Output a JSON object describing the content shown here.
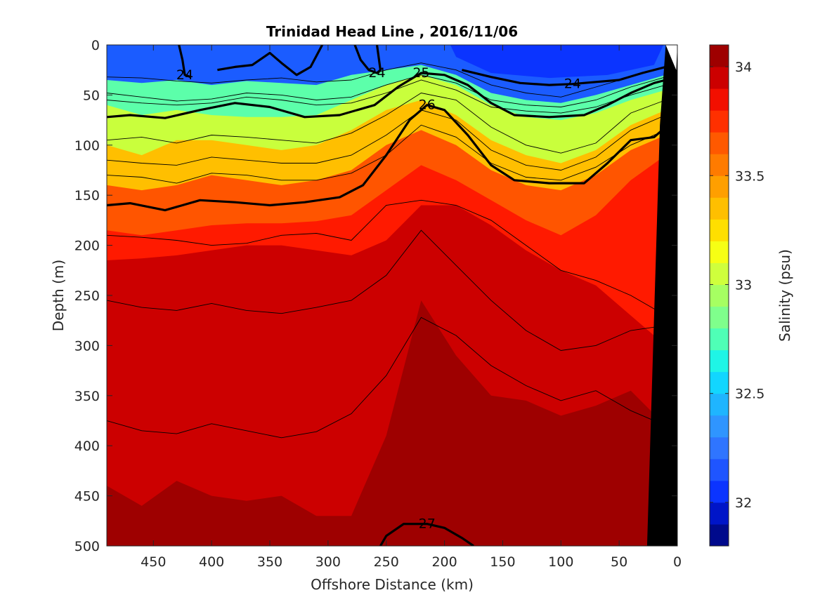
{
  "chart_data": {
    "type": "heatmap",
    "subtype": "filled-contour section with density contour overlay",
    "title": "Trinidad Head Line , 2016/11/06",
    "xlabel": "Offshore Distance (km)",
    "ylabel": "Depth (m)",
    "colorbar_label": "Salinity (psu)",
    "xlim": [
      490,
      0
    ],
    "ylim": [
      0,
      500
    ],
    "x_reversed": true,
    "y_reversed": true,
    "x_ticks": [
      450,
      400,
      350,
      300,
      250,
      200,
      150,
      100,
      50,
      0
    ],
    "y_ticks": [
      0,
      50,
      100,
      150,
      200,
      250,
      300,
      350,
      400,
      450,
      500
    ],
    "colorbar": {
      "clim": [
        31.8,
        34.1
      ],
      "ticks": [
        32,
        32.5,
        33,
        33.5,
        34
      ],
      "levels": [
        31.8,
        31.9,
        32.0,
        32.1,
        32.2,
        32.3,
        32.4,
        32.5,
        32.6,
        32.7,
        32.8,
        32.9,
        33.0,
        33.1,
        33.2,
        33.3,
        33.4,
        33.5,
        33.6,
        33.7,
        33.8,
        33.9,
        34.0,
        34.1
      ],
      "colors": [
        "#000a8c",
        "#0015c8",
        "#0b34ff",
        "#1f55ff",
        "#2f75ff",
        "#2f95ff",
        "#1fb5ff",
        "#12d6ff",
        "#1ff5e6",
        "#4fffb6",
        "#7fff8c",
        "#a6ff62",
        "#cfff3c",
        "#f6ff14",
        "#ffdf00",
        "#ffbf00",
        "#ff9f00",
        "#ff7b00",
        "#ff5900",
        "#ff3000",
        "#f20f00",
        "#cc0000",
        "#9e0000"
      ]
    },
    "salinity_bands": [
      {
        "x": [
          490,
          460,
          430,
          400,
          370,
          340,
          310,
          280,
          250,
          220,
          190,
          160,
          130,
          100,
          70,
          40,
          10
        ],
        "y": [
          0,
          0,
          0,
          0,
          0,
          0,
          0,
          0,
          0,
          0,
          0,
          0,
          0,
          0,
          0,
          0,
          0
        ]
      },
      {
        "x": [
          490,
          460,
          430,
          400,
          370,
          340,
          310,
          280,
          250,
          220,
          190,
          160,
          130,
          100,
          70,
          40,
          10
        ],
        "y": [
          35,
          38,
          35,
          40,
          36,
          38,
          40,
          30,
          25,
          20,
          30,
          48,
          55,
          58,
          50,
          40,
          30
        ]
      },
      {
        "x": [
          490,
          460,
          430,
          400,
          370,
          340,
          310,
          280,
          250,
          220,
          190,
          160,
          130,
          100,
          70,
          40,
          10
        ],
        "y": [
          60,
          70,
          65,
          70,
          72,
          72,
          70,
          55,
          40,
          30,
          40,
          60,
          72,
          75,
          68,
          55,
          45
        ]
      },
      {
        "x": [
          490,
          460,
          430,
          400,
          370,
          340,
          310,
          280,
          250,
          220,
          190,
          160,
          130,
          100,
          70,
          40,
          10
        ],
        "y": [
          100,
          110,
          95,
          95,
          100,
          105,
          100,
          85,
          65,
          55,
          70,
          95,
          110,
          118,
          105,
          80,
          65
        ]
      },
      {
        "x": [
          490,
          460,
          430,
          400,
          370,
          340,
          310,
          280,
          250,
          220,
          190,
          160,
          130,
          100,
          70,
          40,
          10
        ],
        "y": [
          140,
          145,
          140,
          130,
          135,
          140,
          135,
          125,
          100,
          85,
          100,
          125,
          140,
          145,
          130,
          105,
          90
        ]
      },
      {
        "x": [
          490,
          460,
          430,
          400,
          370,
          340,
          310,
          280,
          250,
          220,
          190,
          160,
          130,
          100,
          70,
          40,
          10
        ],
        "y": [
          185,
          190,
          185,
          180,
          178,
          178,
          176,
          170,
          145,
          120,
          135,
          155,
          175,
          190,
          170,
          135,
          110
        ]
      },
      {
        "x": [
          490,
          460,
          430,
          400,
          370,
          340,
          310,
          280,
          250,
          220,
          190,
          160,
          130,
          100,
          70,
          40,
          10
        ],
        "y": [
          215,
          213,
          210,
          205,
          200,
          200,
          205,
          210,
          195,
          160,
          160,
          180,
          205,
          225,
          240,
          270,
          300
        ]
      },
      {
        "x": [
          490,
          460,
          430,
          400,
          370,
          340,
          310,
          280,
          250,
          220,
          190,
          160,
          130,
          100,
          70,
          40,
          10
        ],
        "y": [
          440,
          460,
          435,
          450,
          455,
          450,
          470,
          470,
          390,
          255,
          310,
          350,
          355,
          370,
          360,
          345,
          380
        ]
      }
    ],
    "density_contours": [
      {
        "value": 24,
        "labeled": true,
        "x": [
          428,
          425,
          423,
          418
        ],
        "y": [
          0,
          15,
          30,
          32
        ]
      },
      {
        "value": 24,
        "labeled": false,
        "x": [
          395,
          380,
          365,
          350,
          340,
          327,
          315,
          305
        ],
        "y": [
          25,
          22,
          20,
          8,
          18,
          30,
          22,
          0
        ]
      },
      {
        "value": 24,
        "labeled": true,
        "x": [
          277,
          272,
          265,
          258,
          255,
          258
        ],
        "y": [
          0,
          15,
          25,
          28,
          25,
          0
        ]
      },
      {
        "value": 24,
        "labeled": true,
        "x": [
          185,
          160,
          135,
          110,
          90,
          70,
          50,
          30,
          10
        ],
        "y": [
          25,
          32,
          38,
          40,
          39,
          37,
          35,
          28,
          22
        ]
      },
      {
        "value": 25,
        "labeled": true,
        "x": [
          490,
          470,
          440,
          410,
          380,
          350,
          320,
          290,
          260,
          240,
          220,
          200,
          180,
          160,
          140,
          110,
          80,
          60,
          40,
          20,
          10
        ],
        "y": [
          72,
          70,
          73,
          65,
          58,
          62,
          72,
          70,
          60,
          42,
          28,
          30,
          40,
          58,
          70,
          72,
          70,
          60,
          48,
          38,
          35
        ]
      },
      {
        "value": 26,
        "labeled": true,
        "x": [
          490,
          470,
          440,
          410,
          380,
          350,
          320,
          290,
          270,
          250,
          230,
          215,
          200,
          180,
          160,
          140,
          110,
          80,
          60,
          40,
          20,
          10
        ],
        "y": [
          160,
          158,
          165,
          155,
          157,
          160,
          157,
          152,
          140,
          110,
          75,
          60,
          65,
          90,
          120,
          135,
          138,
          138,
          118,
          95,
          92,
          82
        ]
      },
      {
        "value": 27,
        "labeled": true,
        "x": [
          255,
          250,
          235,
          215,
          200,
          185,
          175
        ],
        "y": [
          500,
          490,
          478,
          478,
          482,
          492,
          500
        ]
      }
    ],
    "thin_contours": [
      {
        "x": [
          490,
          460,
          430,
          400,
          370,
          340,
          310,
          280,
          250,
          220,
          190,
          160,
          130,
          100,
          70,
          40,
          10
        ],
        "y": [
          32,
          33,
          36,
          38,
          35,
          33,
          37,
          35,
          25,
          18,
          25,
          40,
          48,
          52,
          42,
          32,
          22
        ]
      },
      {
        "x": [
          490,
          460,
          430,
          400,
          370,
          340,
          310,
          280,
          250,
          220,
          190,
          160,
          130,
          100,
          70,
          40,
          10
        ],
        "y": [
          48,
          52,
          56,
          54,
          48,
          50,
          55,
          52,
          40,
          30,
          38,
          55,
          60,
          62,
          55,
          42,
          32
        ]
      },
      {
        "x": [
          490,
          460,
          430,
          400,
          370,
          340,
          310,
          280,
          250,
          220,
          190,
          160,
          130,
          100,
          70,
          40,
          10
        ],
        "y": [
          55,
          58,
          60,
          58,
          52,
          55,
          60,
          58,
          48,
          35,
          45,
          62,
          66,
          68,
          62,
          50,
          40
        ]
      },
      {
        "x": [
          490,
          460,
          430,
          400,
          370,
          340,
          310,
          280,
          250,
          220,
          190,
          160,
          130,
          100,
          70,
          40,
          10
        ],
        "y": [
          95,
          92,
          98,
          90,
          92,
          95,
          98,
          88,
          70,
          48,
          55,
          82,
          100,
          108,
          98,
          68,
          55
        ]
      },
      {
        "x": [
          490,
          460,
          430,
          400,
          370,
          340,
          310,
          280,
          250,
          220,
          190,
          160,
          130,
          100,
          70,
          40,
          10
        ],
        "y": [
          115,
          118,
          120,
          112,
          115,
          118,
          118,
          110,
          90,
          65,
          75,
          105,
          120,
          125,
          112,
          85,
          70
        ]
      },
      {
        "x": [
          490,
          460,
          430,
          400,
          370,
          340,
          310,
          280,
          250,
          220,
          190,
          160,
          130,
          100,
          70,
          40,
          10
        ],
        "y": [
          130,
          132,
          138,
          128,
          130,
          135,
          135,
          128,
          110,
          80,
          92,
          118,
          132,
          135,
          122,
          100,
          85
        ]
      },
      {
        "x": [
          490,
          460,
          430,
          400,
          370,
          340,
          310,
          280,
          250,
          220,
          190,
          160,
          130,
          100,
          70,
          40,
          10
        ],
        "y": [
          190,
          192,
          195,
          200,
          198,
          190,
          188,
          195,
          160,
          155,
          160,
          175,
          200,
          225,
          235,
          250,
          270
        ]
      },
      {
        "x": [
          490,
          460,
          430,
          400,
          370,
          340,
          310,
          280,
          250,
          220,
          190,
          160,
          130,
          100,
          70,
          40,
          10
        ],
        "y": [
          255,
          262,
          265,
          258,
          265,
          268,
          262,
          255,
          230,
          185,
          220,
          255,
          285,
          305,
          300,
          285,
          280
        ]
      },
      {
        "x": [
          490,
          460,
          430,
          400,
          370,
          340,
          310,
          280,
          250,
          220,
          190,
          160,
          130,
          100,
          70,
          40,
          10
        ],
        "y": [
          375,
          385,
          388,
          378,
          385,
          392,
          386,
          368,
          330,
          272,
          290,
          320,
          340,
          355,
          345,
          365,
          380
        ]
      }
    ]
  }
}
